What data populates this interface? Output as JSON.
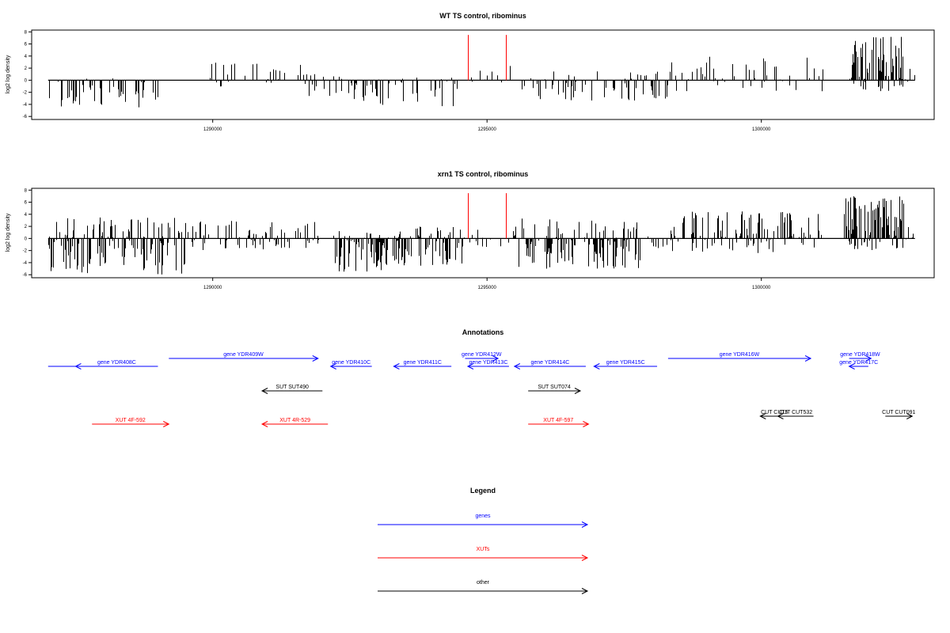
{
  "colors": {
    "genes": "#0000ff",
    "XUTs": "#ff0000",
    "other": "#000000",
    "highlight": "#ff0000",
    "bars": "#000000"
  },
  "panels": [
    {
      "title": "WT TS control, ribominus"
    },
    {
      "title": "xrn1 TS control, ribominus"
    }
  ],
  "annotations": {
    "title": "Annotations",
    "items": [
      {
        "label": "",
        "start": 1287000,
        "end": 1289000,
        "dir": "none",
        "class": "genes",
        "row": 1
      },
      {
        "label": "gene YDR408C",
        "start": 1289000,
        "end": 1287500,
        "dir": "left",
        "class": "genes",
        "row": 1
      },
      {
        "label": "gene YDR409W",
        "start": 1289200,
        "end": 1291920,
        "dir": "right",
        "class": "genes",
        "row": 0
      },
      {
        "label": "gene YDR410C",
        "start": 1292900,
        "end": 1292150,
        "dir": "left",
        "class": "genes",
        "row": 1
      },
      {
        "label": "gene YDR411C",
        "start": 1294350,
        "end": 1293300,
        "dir": "left",
        "class": "genes",
        "row": 1
      },
      {
        "label": "gene YDR412W",
        "start": 1294600,
        "end": 1295200,
        "dir": "right",
        "class": "genes",
        "row": 0
      },
      {
        "label": "gene YDR413C",
        "start": 1295400,
        "end": 1294650,
        "dir": "left",
        "class": "genes",
        "row": 1
      },
      {
        "label": "gene YDR414C",
        "start": 1296800,
        "end": 1295500,
        "dir": "left",
        "class": "genes",
        "row": 1
      },
      {
        "label": "gene YDR415C",
        "start": 1298100,
        "end": 1296950,
        "dir": "left",
        "class": "genes",
        "row": 1
      },
      {
        "label": "gene YDR416W",
        "start": 1298300,
        "end": 1300900,
        "dir": "right",
        "class": "genes",
        "row": 0
      },
      {
        "label": "gene YDR418W",
        "start": 1301600,
        "end": 1302000,
        "dir": "right",
        "class": "genes",
        "row": 0
      },
      {
        "label": "gene YDR417C",
        "start": 1301950,
        "end": 1301600,
        "dir": "left",
        "class": "genes",
        "row": 1
      },
      {
        "label": "SUT SUT490",
        "start": 1292000,
        "end": 1290900,
        "dir": "left",
        "class": "other",
        "row": 2
      },
      {
        "label": "SUT SUT074",
        "start": 1295750,
        "end": 1296700,
        "dir": "right",
        "class": "other",
        "row": 2
      },
      {
        "label": "CUT CUT5",
        "start": 1300500,
        "end": 1299980,
        "dir": "left",
        "class": "other",
        "row": 3
      },
      {
        "label": "CUT CUT532",
        "start": 1300950,
        "end": 1300300,
        "dir": "left",
        "class": "other",
        "row": 3
      },
      {
        "label": "CUT CUT091",
        "start": 1302260,
        "end": 1302750,
        "dir": "right",
        "class": "other",
        "row": 3
      },
      {
        "label": "XUT 4F-592",
        "start": 1287800,
        "end": 1289200,
        "dir": "right",
        "class": "XUTs",
        "row": 4
      },
      {
        "label": "XUT 4R-529",
        "start": 1292100,
        "end": 1290900,
        "dir": "left",
        "class": "XUTs",
        "row": 4
      },
      {
        "label": "XUT 4F-597",
        "start": 1295750,
        "end": 1296850,
        "dir": "right",
        "class": "XUTs",
        "row": 4
      }
    ]
  },
  "legend": {
    "title": "Legend",
    "items": [
      {
        "label": "genes",
        "class": "genes"
      },
      {
        "label": "XUTs",
        "class": "XUTs"
      },
      {
        "label": "other",
        "class": "other"
      }
    ]
  },
  "chart_data": [
    {
      "type": "bar",
      "title": "WT TS control, ribominus",
      "xlabel": "",
      "ylabel": "log2 log density",
      "xlim": [
        1286700,
        1303150
      ],
      "ylim": [
        -6.5,
        8.3
      ],
      "xticks": [
        1290000,
        1295000,
        1300000
      ],
      "xtick_labels": [
        "1290000",
        "1295000",
        "1300000"
      ],
      "yticks": [
        -6,
        -4,
        -2,
        0,
        2,
        4,
        6,
        8
      ],
      "highlight_x": [
        1294650,
        1295350
      ],
      "highlight_value": 7.5,
      "regions": [
        {
          "x": [
            1287000,
            1289000
          ],
          "max": 0.5,
          "min": -4.5,
          "n": 55
        },
        {
          "x": [
            1289500,
            1291700
          ],
          "max": 3.0,
          "min": -1.5,
          "n": 28
        },
        {
          "x": [
            1291700,
            1293000
          ],
          "max": 1.0,
          "min": -3.5,
          "n": 40
        },
        {
          "x": [
            1293000,
            1294500
          ],
          "max": 1.0,
          "min": -4.5,
          "n": 28
        },
        {
          "x": [
            1294700,
            1295500
          ],
          "max": 2.5,
          "min": -0.5,
          "n": 12
        },
        {
          "x": [
            1295600,
            1298300
          ],
          "max": 1.5,
          "min": -3.5,
          "n": 70
        },
        {
          "x": [
            1298300,
            1301300
          ],
          "max": 4.0,
          "min": -2.0,
          "n": 55
        },
        {
          "x": [
            1301600,
            1302600
          ],
          "max": 7.5,
          "min": -2.0,
          "n": 90
        },
        {
          "x": [
            1302600,
            1302800
          ],
          "max": 2.0,
          "min": -0.5,
          "n": 6
        }
      ]
    },
    {
      "type": "bar",
      "title": "xrn1 TS control, ribominus",
      "xlabel": "",
      "ylabel": "log2 log density",
      "xlim": [
        1286700,
        1303150
      ],
      "ylim": [
        -6.5,
        8.3
      ],
      "xticks": [
        1290000,
        1295000,
        1300000
      ],
      "xtick_labels": [
        "1290000",
        "1295000",
        "1300000"
      ],
      "yticks": [
        -6,
        -4,
        -2,
        0,
        2,
        4,
        6,
        8
      ],
      "highlight_x": [
        1294650,
        1295350
      ],
      "highlight_value": 7.5,
      "regions": [
        {
          "x": [
            1287000,
            1289500
          ],
          "max": 3.5,
          "min": -6.0,
          "n": 150
        },
        {
          "x": [
            1289500,
            1292000
          ],
          "max": 3.0,
          "min": -2.0,
          "n": 90
        },
        {
          "x": [
            1292200,
            1293300
          ],
          "max": 1.5,
          "min": -5.5,
          "n": 80
        },
        {
          "x": [
            1293300,
            1294600
          ],
          "max": 2.0,
          "min": -4.5,
          "n": 80
        },
        {
          "x": [
            1294600,
            1295500
          ],
          "max": 1.5,
          "min": -1.5,
          "n": 18
        },
        {
          "x": [
            1295500,
            1297800
          ],
          "max": 3.5,
          "min": -5.0,
          "n": 130
        },
        {
          "x": [
            1297800,
            1298300
          ],
          "max": 0.5,
          "min": -2.5,
          "n": 10
        },
        {
          "x": [
            1298300,
            1301100
          ],
          "max": 4.5,
          "min": -2.5,
          "n": 120
        },
        {
          "x": [
            1301500,
            1302600
          ],
          "max": 7.0,
          "min": -2.0,
          "n": 110
        },
        {
          "x": [
            1302600,
            1302800
          ],
          "max": 2.0,
          "min": -0.5,
          "n": 6
        }
      ]
    }
  ]
}
